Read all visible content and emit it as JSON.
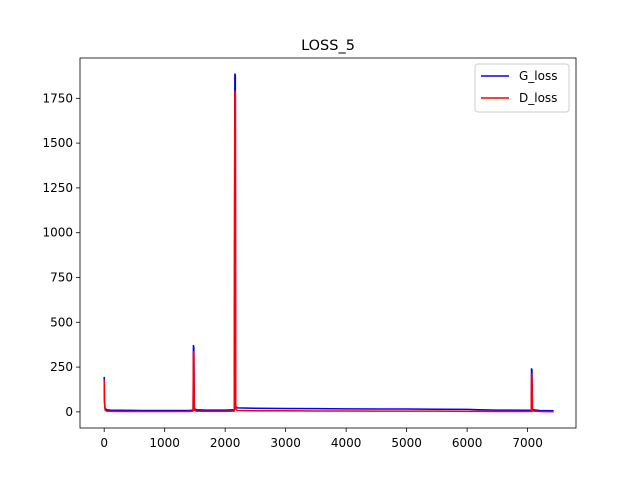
{
  "chart_data": {
    "type": "line",
    "title": "LOSS_5",
    "xlabel": "",
    "ylabel": "",
    "xlim": [
      -400,
      7800
    ],
    "ylim": [
      -90,
      1975
    ],
    "xticks": [
      0,
      1000,
      2000,
      3000,
      4000,
      5000,
      6000,
      7000
    ],
    "yticks": [
      0,
      250,
      500,
      750,
      1000,
      1250,
      1500,
      1750
    ],
    "grid": false,
    "legend_position": "top-right",
    "series": [
      {
        "name": "G_loss",
        "color": "#0000ff",
        "points": [
          [
            0,
            195
          ],
          [
            5,
            60
          ],
          [
            15,
            20
          ],
          [
            40,
            12
          ],
          [
            100,
            10
          ],
          [
            300,
            9
          ],
          [
            600,
            8
          ],
          [
            1000,
            8
          ],
          [
            1400,
            8
          ],
          [
            1470,
            10
          ],
          [
            1475,
            370
          ],
          [
            1482,
            360
          ],
          [
            1490,
            20
          ],
          [
            1520,
            12
          ],
          [
            1700,
            10
          ],
          [
            2000,
            10
          ],
          [
            2150,
            12
          ],
          [
            2160,
            1885
          ],
          [
            2168,
            1880
          ],
          [
            2175,
            30
          ],
          [
            2200,
            22
          ],
          [
            2500,
            20
          ],
          [
            3000,
            19
          ],
          [
            3500,
            18
          ],
          [
            4000,
            17
          ],
          [
            4500,
            16
          ],
          [
            5000,
            16
          ],
          [
            5500,
            15
          ],
          [
            6000,
            14
          ],
          [
            6200,
            12
          ],
          [
            6500,
            10
          ],
          [
            7000,
            9
          ],
          [
            7060,
            10
          ],
          [
            7065,
            240
          ],
          [
            7072,
            235
          ],
          [
            7080,
            12
          ],
          [
            7200,
            8
          ],
          [
            7430,
            6
          ]
        ]
      },
      {
        "name": "D_loss",
        "color": "#ff0000",
        "points": [
          [
            0,
            180
          ],
          [
            5,
            50
          ],
          [
            15,
            10
          ],
          [
            40,
            4
          ],
          [
            100,
            3
          ],
          [
            300,
            2
          ],
          [
            600,
            2
          ],
          [
            1000,
            2
          ],
          [
            1400,
            2
          ],
          [
            1470,
            4
          ],
          [
            1475,
            335
          ],
          [
            1482,
            325
          ],
          [
            1490,
            10
          ],
          [
            1520,
            4
          ],
          [
            1700,
            3
          ],
          [
            2000,
            3
          ],
          [
            2150,
            4
          ],
          [
            2160,
            1790
          ],
          [
            2168,
            1780
          ],
          [
            2175,
            15
          ],
          [
            2200,
            8
          ],
          [
            2500,
            6
          ],
          [
            3000,
            6
          ],
          [
            3500,
            5
          ],
          [
            4000,
            5
          ],
          [
            4500,
            4
          ],
          [
            5000,
            4
          ],
          [
            5500,
            4
          ],
          [
            6000,
            3
          ],
          [
            6200,
            3
          ],
          [
            6500,
            2
          ],
          [
            7000,
            2
          ],
          [
            7060,
            3
          ],
          [
            7065,
            210
          ],
          [
            7072,
            205
          ],
          [
            7080,
            5
          ],
          [
            7200,
            2
          ],
          [
            7430,
            1
          ]
        ]
      }
    ]
  }
}
